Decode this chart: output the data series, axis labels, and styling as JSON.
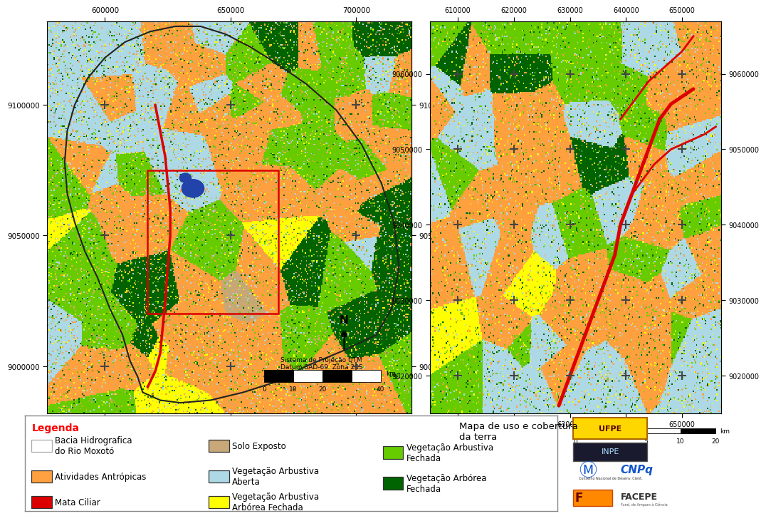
{
  "legend_title": "Legenda",
  "legend_items": [
    {
      "label": "Bacia Hidrografica\ndo Rio Moxotó",
      "color": "#ffffff",
      "edge": "#aaaaaa"
    },
    {
      "label": "Atividades Antrópicas",
      "color": "#FFA040",
      "edge": null
    },
    {
      "label": "Mata Ciliar",
      "color": "#DD0000",
      "edge": null
    },
    {
      "label": "Solo Exposto",
      "color": "#C8A878",
      "edge": null
    },
    {
      "label": "Vegetação Arbustiva\nAberta",
      "color": "#ADD8E6",
      "edge": null
    },
    {
      "label": "Vegetação Arbustiva\nArbórea Fechada",
      "color": "#FFFF00",
      "edge": null
    },
    {
      "label": "Vegetação Arbustiva\nFechada",
      "color": "#66CC00",
      "edge": null
    },
    {
      "label": "Vegetação Arbórea\nFechada",
      "color": "#006400",
      "edge": null
    }
  ],
  "left_map": {
    "xticks": [
      600000,
      650000,
      700000
    ],
    "yticks": [
      9000000,
      9050000,
      9100000
    ],
    "xlim": [
      577000,
      722000
    ],
    "ylim": [
      8982000,
      9132000
    ],
    "projection_text": "Sistema de Projeção UTM\nDatum SAD-69  Zona 24S"
  },
  "right_map": {
    "xticks": [
      610000,
      620000,
      630000,
      640000,
      650000
    ],
    "yticks": [
      9020000,
      9030000,
      9040000,
      9050000,
      9060000
    ],
    "xlim": [
      605000,
      657000
    ],
    "ylim": [
      9015000,
      9067000
    ]
  },
  "figure_bg": "#ffffff",
  "map_colors": {
    "orange": "#FFA040",
    "light_blue": "#ADD8E6",
    "green": "#66CC00",
    "dark_green": "#006400",
    "yellow": "#FFFF00",
    "red": "#DD0000",
    "tan": "#C8A878",
    "blue_water": "#3355AA",
    "white": "#ffffff"
  }
}
